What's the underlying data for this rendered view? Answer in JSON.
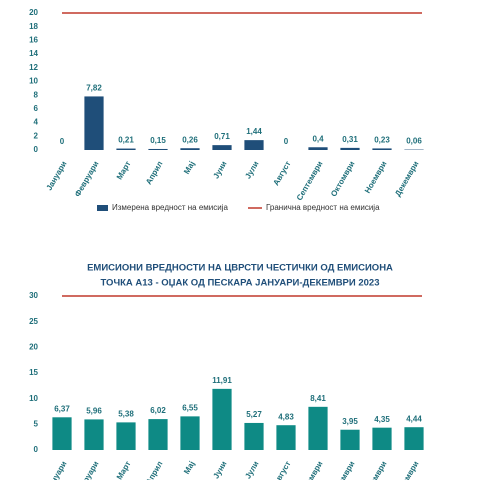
{
  "chart_data": [
    {
      "type": "bar",
      "categories": [
        "Јануари",
        "Февруари",
        "Март",
        "Април",
        "Мај",
        "Јуни",
        "Јули",
        "Август",
        "Септември",
        "Октомври",
        "Ноември",
        "Декември"
      ],
      "series": [
        {
          "name": "Измерена вредност на емисија",
          "color": "#1f4e79",
          "values": [
            0,
            7.82,
            0.21,
            0.15,
            0.26,
            0.71,
            1.44,
            0,
            0.4,
            0.31,
            0.23,
            0.06
          ],
          "value_labels": [
            "0",
            "7,82",
            "0,21",
            "0,15",
            "0,26",
            "0,71",
            "1,44",
            "0",
            "0,4",
            "0,31",
            "0,23",
            "0,06"
          ]
        }
      ],
      "limit_line": {
        "name": "Гранична вредност на емисија",
        "value": 20,
        "color": "#c0392b"
      },
      "ylim": [
        0,
        20
      ],
      "yticks": [
        0,
        2,
        4,
        6,
        8,
        10,
        12,
        14,
        16,
        18,
        20
      ],
      "legend": "bottom"
    },
    {
      "type": "bar",
      "title": [
        "ЕМИСИОНИ ВРЕДНОСТИ НА ЦВРСТИ ЧЕСТИЧКИ ОД ЕМИСИОНА",
        "ТОЧКА А13 - ОЏАК ОД ПЕСКАРА ЈАНУАРИ-ДЕКЕМВРИ 2023"
      ],
      "categories": [
        "Јануари",
        "Февруари",
        "Март",
        "Април",
        "Мај",
        "Јуни",
        "Јули",
        "Август",
        "Септември",
        "Октомври",
        "Ноември",
        "Декември"
      ],
      "series": [
        {
          "color": "#0e8a85",
          "values": [
            6.37,
            5.96,
            5.38,
            6.02,
            6.55,
            11.91,
            5.27,
            4.83,
            8.41,
            3.95,
            4.35,
            4.44
          ],
          "value_labels": [
            "6,37",
            "5,96",
            "5,38",
            "6,02",
            "6,55",
            "11,91",
            "5,27",
            "4,83",
            "8,41",
            "3,95",
            "4,35",
            "4,44"
          ]
        }
      ],
      "limit_line": {
        "value": 30,
        "color": "#c0392b"
      },
      "ylim": [
        0,
        30
      ],
      "yticks": [
        0,
        5,
        10,
        15,
        20,
        25,
        30
      ]
    }
  ]
}
